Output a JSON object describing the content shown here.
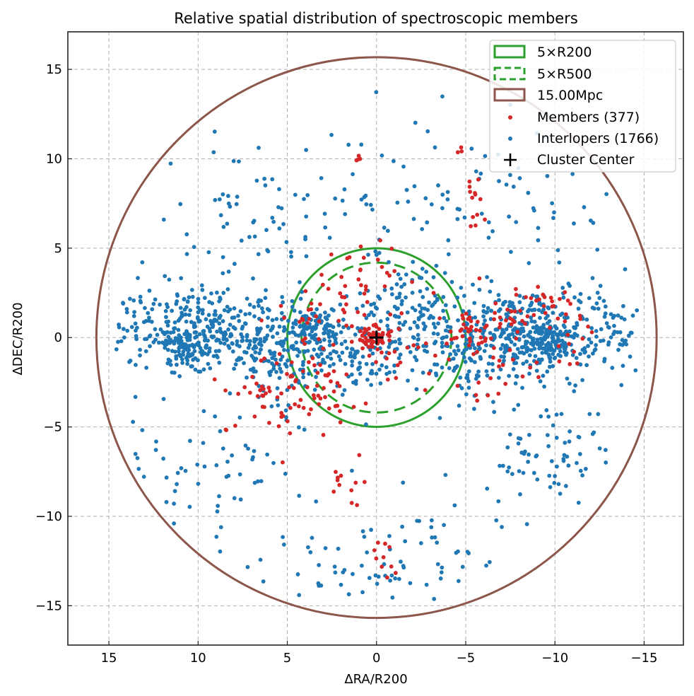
{
  "chart_data": {
    "type": "scatter",
    "title": "Relative spatial distribution of spectroscopic members",
    "xlabel": "ΔRA/R200",
    "ylabel": "ΔDEC/R200",
    "xlim": [
      17.3,
      -17.2
    ],
    "ylim": [
      -17.2,
      17.1
    ],
    "x_inverted": true,
    "grid": true,
    "xticks": [
      15,
      10,
      5,
      0,
      -5,
      -10,
      -15
    ],
    "xtick_labels": [
      "15",
      "10",
      "5",
      "0",
      "−5",
      "−10",
      "−15"
    ],
    "yticks": [
      15,
      10,
      5,
      0,
      -5,
      -10,
      -15
    ],
    "ytick_labels": [
      "15",
      "10",
      "5",
      "0",
      "−5",
      "−10",
      "−15"
    ],
    "legend_position": "top-right",
    "circles": [
      {
        "name": "5×R200",
        "radius": 5.0,
        "color": "#2ca02c",
        "style": "solid"
      },
      {
        "name": "5×R500",
        "radius": 4.2,
        "color": "#2ca02c",
        "style": "dashed"
      },
      {
        "name": "15.00Mpc",
        "radius": 15.7,
        "color": "#8c564b",
        "style": "solid"
      }
    ],
    "center": {
      "name": "Cluster Center",
      "x": 0,
      "y": 0,
      "marker": "+",
      "color": "#000000"
    },
    "series": [
      {
        "name": "Members (377)",
        "count": 377,
        "color": "#d62728",
        "clusters": [
          {
            "cx": 0.2,
            "cy": 0.0,
            "sx": 0.45,
            "sy": 0.45,
            "n": 45
          },
          {
            "cx": 2.5,
            "cy": 0.5,
            "sx": 1.6,
            "sy": 1.6,
            "n": 40
          },
          {
            "cx": -1.5,
            "cy": -0.8,
            "sx": 1.5,
            "sy": 1.2,
            "n": 25
          },
          {
            "cx": 3.6,
            "cy": -2.8,
            "sx": 1.0,
            "sy": 1.3,
            "n": 45
          },
          {
            "cx": 5.2,
            "cy": -3.5,
            "sx": 0.7,
            "sy": 1.2,
            "n": 20
          },
          {
            "cx": 6.6,
            "cy": -2.9,
            "sx": 0.4,
            "sy": 0.4,
            "n": 12
          },
          {
            "cx": 8.7,
            "cy": -3.5,
            "sx": 0.5,
            "sy": 1.0,
            "n": 6
          },
          {
            "cx": -5.0,
            "cy": 0.5,
            "sx": 0.6,
            "sy": 0.5,
            "n": 30
          },
          {
            "cx": -7.5,
            "cy": 1.0,
            "sx": 1.2,
            "sy": 1.0,
            "n": 30
          },
          {
            "cx": -10.0,
            "cy": 1.5,
            "sx": 1.2,
            "sy": 0.7,
            "n": 22
          },
          {
            "cx": -11.5,
            "cy": 0.0,
            "sx": 1.0,
            "sy": 1.2,
            "n": 10
          },
          {
            "cx": -5.5,
            "cy": 7.0,
            "sx": 0.5,
            "sy": 1.6,
            "n": 14
          },
          {
            "cx": -4.7,
            "cy": 10.4,
            "sx": 0.1,
            "sy": 0.1,
            "n": 3
          },
          {
            "cx": 1.0,
            "cy": 10.0,
            "sx": 0.15,
            "sy": 0.15,
            "n": 4
          },
          {
            "cx": 1.5,
            "cy": -8.0,
            "sx": 0.6,
            "sy": 0.8,
            "n": 12
          },
          {
            "cx": 0.0,
            "cy": -12.3,
            "sx": 0.4,
            "sy": 0.5,
            "n": 10
          },
          {
            "cx": -7.0,
            "cy": -1.8,
            "sx": 1.3,
            "sy": 0.8,
            "n": 20
          },
          {
            "cx": 1.5,
            "cy": 3.5,
            "sx": 1.5,
            "sy": 1.0,
            "n": 29
          }
        ]
      },
      {
        "name": "Interlopers (1766)",
        "count": 1766,
        "color": "#1f77b4",
        "clusters": [
          {
            "cx": 9.0,
            "cy": 0.3,
            "sx": 3.2,
            "sy": 1.3,
            "n": 420
          },
          {
            "cx": 10.8,
            "cy": -0.6,
            "sx": 0.5,
            "sy": 0.4,
            "n": 60
          },
          {
            "cx": 3.5,
            "cy": 0.7,
            "sx": 0.6,
            "sy": 0.5,
            "n": 60
          },
          {
            "cx": 1.5,
            "cy": -1.0,
            "sx": 1.8,
            "sy": 1.0,
            "n": 130
          },
          {
            "cx": -1.8,
            "cy": 1.6,
            "sx": 1.5,
            "sy": 1.2,
            "n": 90
          },
          {
            "cx": -9.0,
            "cy": 0.2,
            "sx": 3.0,
            "sy": 1.3,
            "n": 430
          },
          {
            "cx": -9.6,
            "cy": -0.3,
            "sx": 0.5,
            "sy": 0.4,
            "n": 60
          },
          {
            "cx": -4.5,
            "cy": -0.5,
            "sx": 1.2,
            "sy": 1.5,
            "n": 80
          },
          {
            "cx": 5.0,
            "cy": -1.5,
            "sx": 1.5,
            "sy": 1.5,
            "n": 60
          },
          {
            "cx": 6.0,
            "cy": 7.0,
            "sx": 4.0,
            "sy": 2.5,
            "n": 80
          },
          {
            "cx": -6.0,
            "cy": 7.5,
            "sx": 4.0,
            "sy": 2.5,
            "n": 70
          },
          {
            "cx": -9.5,
            "cy": -6.5,
            "sx": 1.8,
            "sy": 1.6,
            "n": 70
          },
          {
            "cx": 9.0,
            "cy": -7.5,
            "sx": 3.5,
            "sy": 2.5,
            "n": 70
          },
          {
            "cx": 0.0,
            "cy": -12.5,
            "sx": 2.5,
            "sy": 1.3,
            "n": 50
          },
          {
            "cx": -4.0,
            "cy": -12.0,
            "sx": 1.5,
            "sy": 1.5,
            "n": 20
          },
          {
            "cx": 0.0,
            "cy": 6.5,
            "sx": 3.0,
            "sy": 3.0,
            "n": 16
          }
        ]
      }
    ]
  }
}
